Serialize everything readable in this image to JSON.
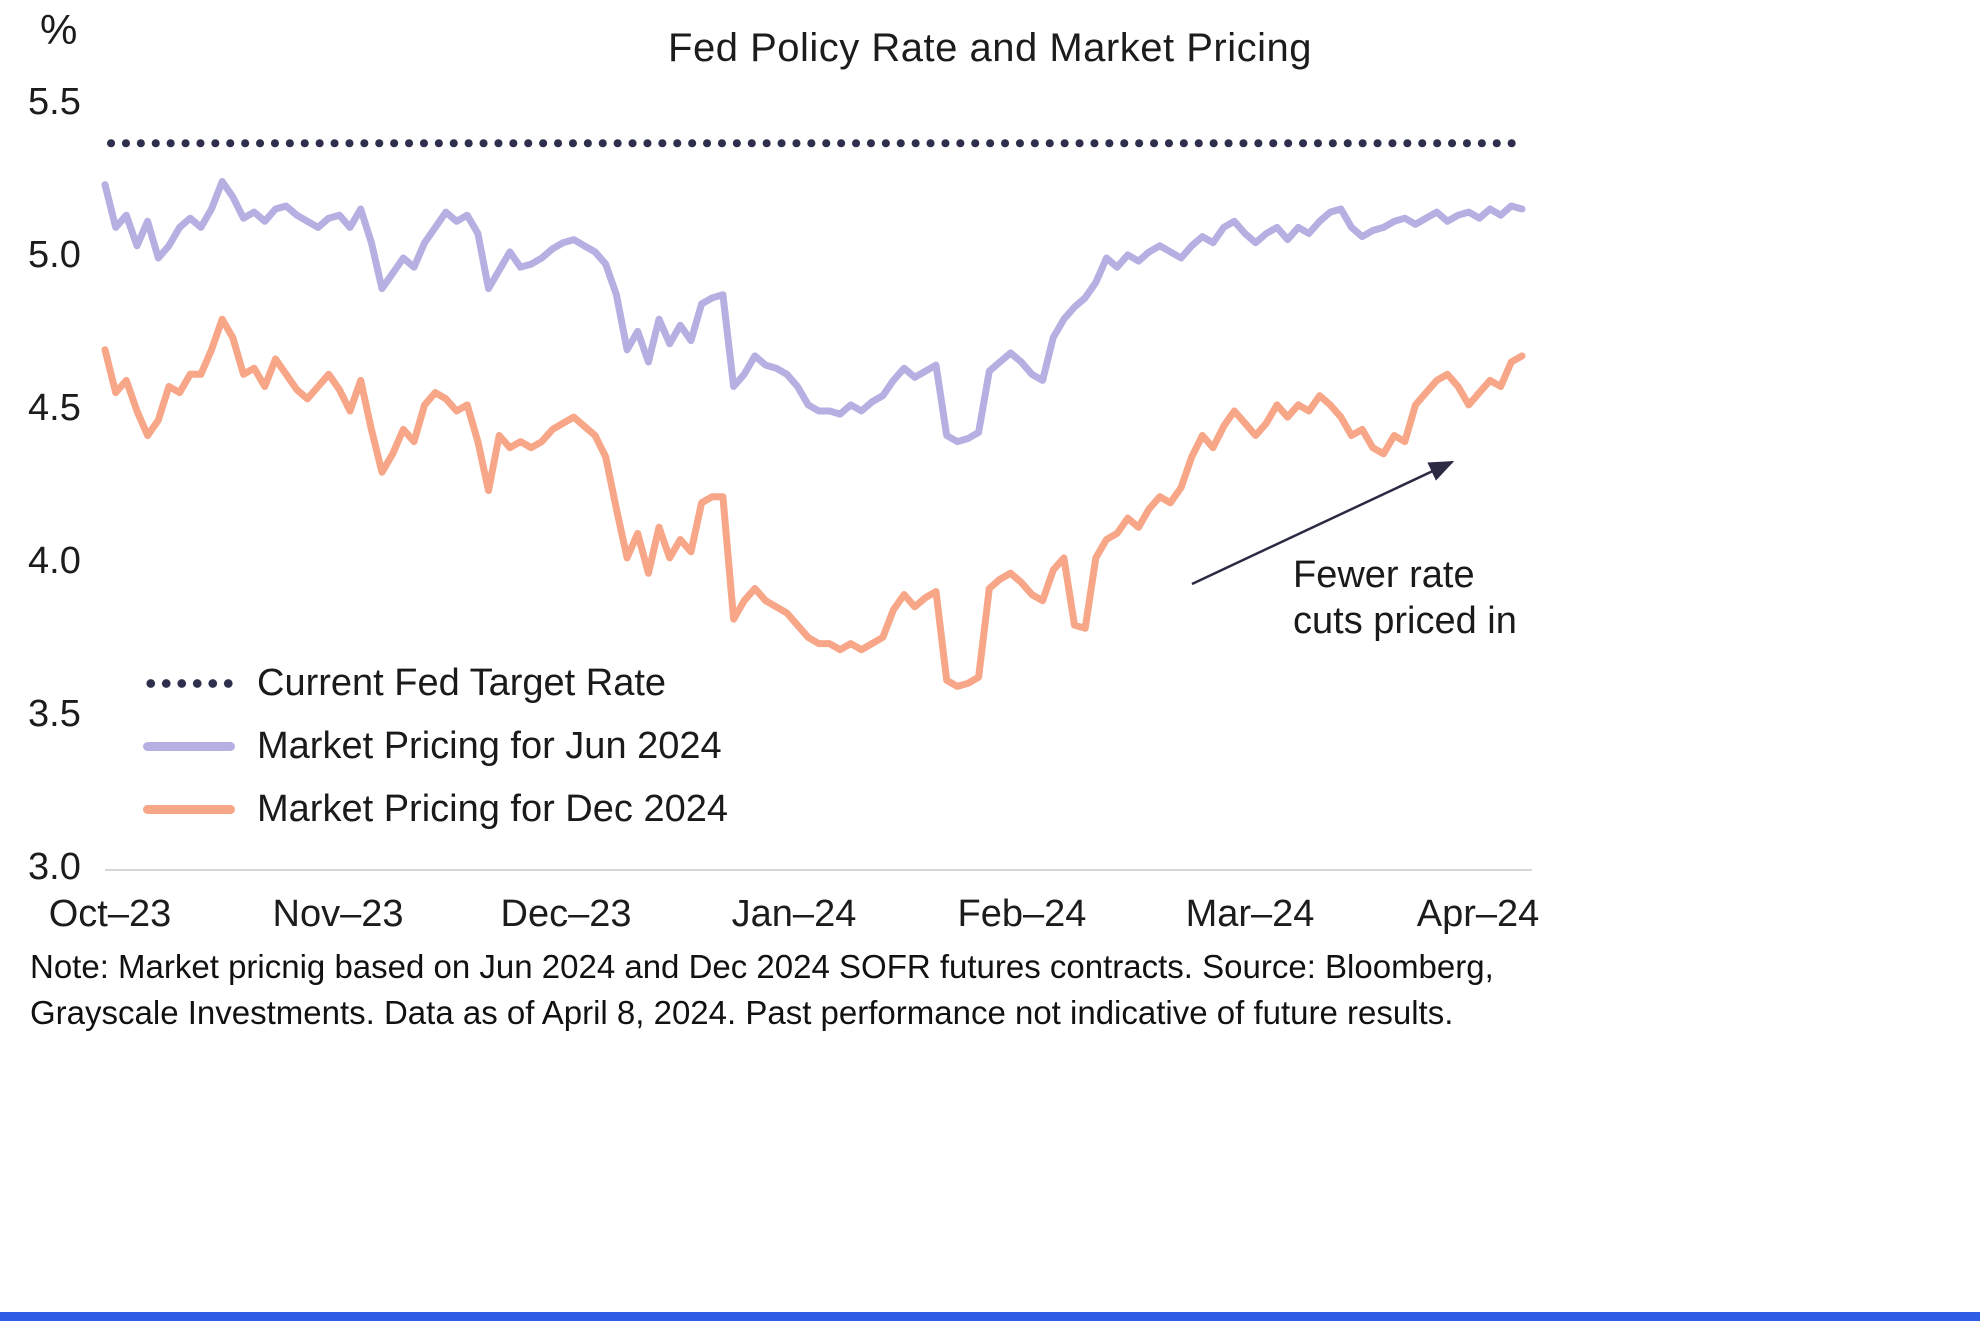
{
  "footnote": "Note: Market pricnig based on Jun 2024 and Dec 2024 SOFR futures contracts. Source: Bloomberg, Grayscale Investments. Data as of April 8, 2024. Past performance not indicative of future results.",
  "colors": {
    "target_rate": "#2e2e4d",
    "jun_series": "#b6b0e2",
    "dec_series": "#f7a688",
    "baseline": "#d6d6d6",
    "arrow": "#2a2a45",
    "bottom_bar": "#2d5ce5",
    "text": "#1a1a1a"
  },
  "chart_data": {
    "type": "line",
    "title": "Fed Policy Rate and Market Pricing",
    "y_unit": "%",
    "ylim": [
      3.0,
      5.5
    ],
    "y_ticks": [
      "5.5",
      "5.0",
      "4.5",
      "4.0",
      "3.5",
      "3.0"
    ],
    "x_ticks": [
      "Oct–23",
      "Nov–23",
      "Dec–23",
      "Jan–24",
      "Feb–24",
      "Mar–24",
      "Apr–24"
    ],
    "grid": false,
    "legend_position": "inside-bottom-left",
    "target_rate": {
      "label": "Current Fed Target Rate",
      "value": 5.375,
      "style": "dotted",
      "color": "#2e2e4d"
    },
    "annotation": {
      "text": "Fewer rate cuts priced in"
    },
    "series": [
      {
        "name": "Market Pricing for Jun 2024",
        "color": "#b6b0e2",
        "values": [
          5.24,
          5.1,
          5.14,
          5.04,
          5.12,
          5.0,
          5.04,
          5.1,
          5.13,
          5.1,
          5.16,
          5.25,
          5.2,
          5.13,
          5.15,
          5.12,
          5.16,
          5.17,
          5.14,
          5.12,
          5.1,
          5.13,
          5.14,
          5.1,
          5.16,
          5.05,
          4.9,
          4.95,
          5.0,
          4.97,
          5.05,
          5.1,
          5.15,
          5.12,
          5.14,
          5.08,
          4.9,
          4.96,
          5.02,
          4.97,
          4.98,
          5.0,
          5.03,
          5.05,
          5.06,
          5.04,
          5.02,
          4.98,
          4.88,
          4.7,
          4.76,
          4.66,
          4.8,
          4.72,
          4.78,
          4.73,
          4.85,
          4.87,
          4.88,
          4.58,
          4.62,
          4.68,
          4.65,
          4.64,
          4.62,
          4.58,
          4.52,
          4.5,
          4.5,
          4.49,
          4.52,
          4.5,
          4.53,
          4.55,
          4.6,
          4.64,
          4.61,
          4.63,
          4.65,
          4.42,
          4.4,
          4.41,
          4.43,
          4.63,
          4.66,
          4.69,
          4.66,
          4.62,
          4.6,
          4.74,
          4.8,
          4.84,
          4.87,
          4.92,
          5.0,
          4.97,
          5.01,
          4.99,
          5.02,
          5.04,
          5.02,
          5.0,
          5.04,
          5.07,
          5.05,
          5.1,
          5.12,
          5.08,
          5.05,
          5.08,
          5.1,
          5.06,
          5.1,
          5.08,
          5.12,
          5.15,
          5.16,
          5.1,
          5.07,
          5.09,
          5.1,
          5.12,
          5.13,
          5.11,
          5.13,
          5.15,
          5.12,
          5.14,
          5.15,
          5.13,
          5.16,
          5.14,
          5.17,
          5.16
        ]
      },
      {
        "name": "Market Pricing for Dec 2024",
        "color": "#f7a688",
        "values": [
          4.7,
          4.56,
          4.6,
          4.5,
          4.42,
          4.47,
          4.58,
          4.56,
          4.62,
          4.62,
          4.7,
          4.8,
          4.74,
          4.62,
          4.64,
          4.58,
          4.67,
          4.62,
          4.57,
          4.54,
          4.58,
          4.62,
          4.57,
          4.5,
          4.6,
          4.44,
          4.3,
          4.36,
          4.44,
          4.4,
          4.52,
          4.56,
          4.54,
          4.5,
          4.52,
          4.4,
          4.24,
          4.42,
          4.38,
          4.4,
          4.38,
          4.4,
          4.44,
          4.46,
          4.48,
          4.45,
          4.42,
          4.35,
          4.18,
          4.02,
          4.1,
          3.97,
          4.12,
          4.02,
          4.08,
          4.04,
          4.2,
          4.22,
          4.22,
          3.82,
          3.88,
          3.92,
          3.88,
          3.86,
          3.84,
          3.8,
          3.76,
          3.74,
          3.74,
          3.72,
          3.74,
          3.72,
          3.74,
          3.76,
          3.85,
          3.9,
          3.86,
          3.89,
          3.91,
          3.62,
          3.6,
          3.61,
          3.63,
          3.92,
          3.95,
          3.97,
          3.94,
          3.9,
          3.88,
          3.98,
          4.02,
          3.8,
          3.79,
          4.02,
          4.08,
          4.1,
          4.15,
          4.12,
          4.18,
          4.22,
          4.2,
          4.25,
          4.35,
          4.42,
          4.38,
          4.45,
          4.5,
          4.46,
          4.42,
          4.46,
          4.52,
          4.48,
          4.52,
          4.5,
          4.55,
          4.52,
          4.48,
          4.42,
          4.44,
          4.38,
          4.36,
          4.42,
          4.4,
          4.52,
          4.56,
          4.6,
          4.62,
          4.58,
          4.52,
          4.56,
          4.6,
          4.58,
          4.66,
          4.68
        ]
      }
    ]
  }
}
